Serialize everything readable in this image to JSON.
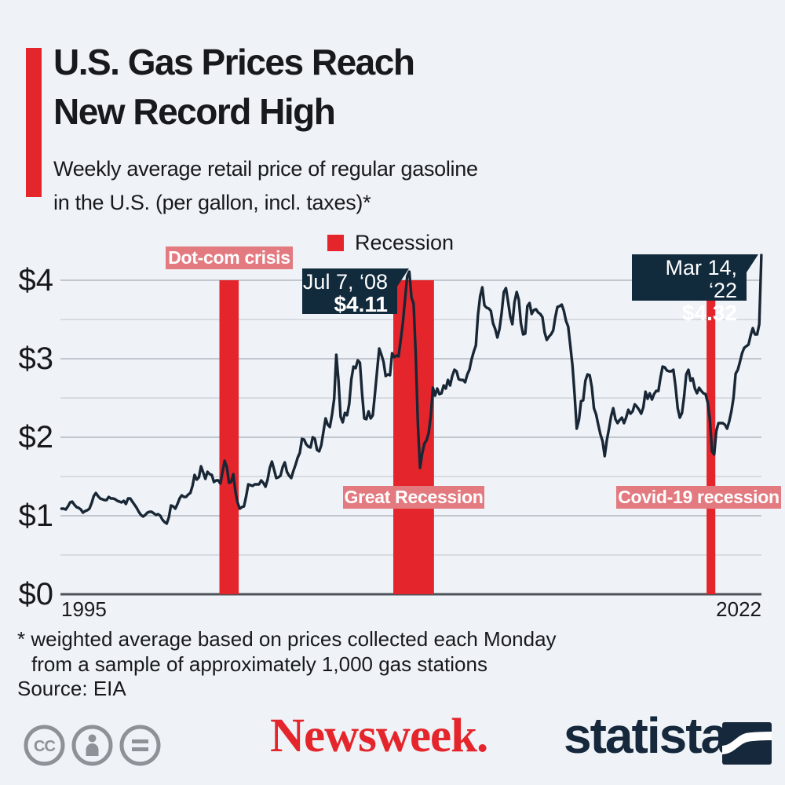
{
  "header": {
    "title_line1": "U.S. Gas Prices Reach",
    "title_line2": "New Record High",
    "subtitle_line1": "Weekly average retail price of regular gasoline",
    "subtitle_line2": "in the U.S. (per gallon, incl. taxes)*"
  },
  "legend": {
    "label": "Recession",
    "color": "#e4262c"
  },
  "chart_data": {
    "type": "line",
    "title": "Weekly average retail price of regular gasoline in the U.S. (per gallon, incl. taxes)",
    "xlabel": "",
    "ylabel": "USD per gallon",
    "x_ticks": [
      "1995",
      "2022"
    ],
    "y_ticks": [
      "$0",
      "$1",
      "$2",
      "$3",
      "$4"
    ],
    "x_range": [
      1995,
      2022.21
    ],
    "y_range": [
      0,
      4
    ],
    "grid": true,
    "line_color": "#182635",
    "recession_color": "#e4262c",
    "recession_bands": [
      {
        "label": "Dot-com crisis",
        "start": 2001.17,
        "end": 2001.92
      },
      {
        "label": "Great Recession",
        "start": 2007.92,
        "end": 2009.5
      },
      {
        "label": "Covid-19 recession",
        "start": 2020.08,
        "end": 2020.42
      }
    ],
    "annotations": [
      {
        "date": "Jul 7, ‘08",
        "value": "$4.11"
      },
      {
        "date": "Mar 14, ‘22",
        "value": "$4.32"
      }
    ],
    "series": [
      {
        "name": "Weekly average retail gasoline price (USD per gallon)",
        "start_year": 1995,
        "cadence": "monthly",
        "values": [
          1.09,
          1.09,
          1.08,
          1.12,
          1.17,
          1.18,
          1.14,
          1.11,
          1.1,
          1.08,
          1.04,
          1.06,
          1.07,
          1.09,
          1.16,
          1.25,
          1.29,
          1.25,
          1.22,
          1.21,
          1.2,
          1.2,
          1.24,
          1.22,
          1.22,
          1.21,
          1.19,
          1.18,
          1.17,
          1.19,
          1.15,
          1.22,
          1.22,
          1.18,
          1.14,
          1.1,
          1.05,
          1.01,
          0.99,
          1.01,
          1.04,
          1.05,
          1.05,
          1.03,
          1.01,
          1.02,
          1.0,
          0.95,
          0.92,
          0.9,
          0.98,
          1.13,
          1.12,
          1.09,
          1.15,
          1.22,
          1.26,
          1.24,
          1.24,
          1.27,
          1.29,
          1.38,
          1.52,
          1.46,
          1.49,
          1.63,
          1.55,
          1.47,
          1.56,
          1.53,
          1.52,
          1.43,
          1.45,
          1.45,
          1.41,
          1.56,
          1.7,
          1.62,
          1.42,
          1.43,
          1.53,
          1.31,
          1.17,
          1.09,
          1.11,
          1.12,
          1.25,
          1.4,
          1.39,
          1.38,
          1.4,
          1.4,
          1.4,
          1.45,
          1.42,
          1.37,
          1.46,
          1.61,
          1.69,
          1.59,
          1.48,
          1.49,
          1.51,
          1.62,
          1.68,
          1.56,
          1.51,
          1.48,
          1.57,
          1.65,
          1.74,
          1.8,
          1.98,
          1.97,
          1.91,
          1.88,
          1.87,
          2.0,
          1.98,
          1.84,
          1.82,
          1.9,
          2.07,
          2.24,
          2.16,
          2.13,
          2.29,
          2.49,
          3.05,
          2.72,
          2.26,
          2.19,
          2.31,
          2.28,
          2.42,
          2.74,
          2.9,
          2.88,
          2.98,
          2.95,
          2.55,
          2.24,
          2.23,
          2.33,
          2.24,
          2.28,
          2.56,
          2.85,
          3.13,
          3.05,
          2.96,
          2.78,
          2.8,
          2.79,
          3.07,
          3.02,
          3.04,
          3.03,
          3.24,
          3.46,
          3.76,
          4.05,
          4.11,
          3.78,
          3.7,
          3.05,
          2.15,
          1.61,
          1.79,
          1.92,
          1.96,
          2.05,
          2.27,
          2.63,
          2.53,
          2.62,
          2.55,
          2.56,
          2.66,
          2.62,
          2.73,
          2.66,
          2.78,
          2.86,
          2.84,
          2.74,
          2.73,
          2.73,
          2.7,
          2.8,
          2.86,
          2.99,
          3.09,
          3.17,
          3.56,
          3.8,
          3.91,
          3.68,
          3.65,
          3.64,
          3.61,
          3.45,
          3.38,
          3.27,
          3.38,
          3.58,
          3.85,
          3.9,
          3.73,
          3.54,
          3.44,
          3.72,
          3.85,
          3.75,
          3.45,
          3.31,
          3.32,
          3.67,
          3.71,
          3.57,
          3.62,
          3.63,
          3.59,
          3.57,
          3.53,
          3.34,
          3.24,
          3.28,
          3.31,
          3.36,
          3.53,
          3.66,
          3.67,
          3.69,
          3.61,
          3.48,
          3.41,
          3.17,
          2.91,
          2.54,
          2.11,
          2.22,
          2.46,
          2.47,
          2.72,
          2.8,
          2.79,
          2.64,
          2.37,
          2.29,
          2.16,
          2.04,
          1.95,
          1.76,
          1.96,
          2.11,
          2.27,
          2.37,
          2.23,
          2.18,
          2.22,
          2.25,
          2.18,
          2.25,
          2.35,
          2.3,
          2.33,
          2.42,
          2.39,
          2.35,
          2.3,
          2.38,
          2.58,
          2.49,
          2.56,
          2.48,
          2.55,
          2.59,
          2.59,
          2.76,
          2.9,
          2.89,
          2.85,
          2.84,
          2.84,
          2.86,
          2.65,
          2.37,
          2.25,
          2.31,
          2.52,
          2.8,
          2.86,
          2.72,
          2.75,
          2.62,
          2.56,
          2.63,
          2.59,
          2.56,
          2.55,
          2.44,
          2.23,
          1.82,
          1.78,
          2.08,
          2.18,
          2.18,
          2.18,
          2.16,
          2.11,
          2.2,
          2.33,
          2.5,
          2.81,
          2.86,
          2.96,
          3.07,
          3.14,
          3.16,
          3.18,
          3.3,
          3.39,
          3.31,
          3.31,
          3.44,
          4.32
        ]
      }
    ]
  },
  "footnote": {
    "line1": "* weighted average based on prices collected each Monday",
    "line2": "from a sample of approximately 1,000 gas stations",
    "source": "Source: EIA"
  },
  "footer": {
    "newsweek_logo_text": "Newsweek.",
    "statista_logo_text": "statista",
    "cc_icon_labels": "CC"
  }
}
